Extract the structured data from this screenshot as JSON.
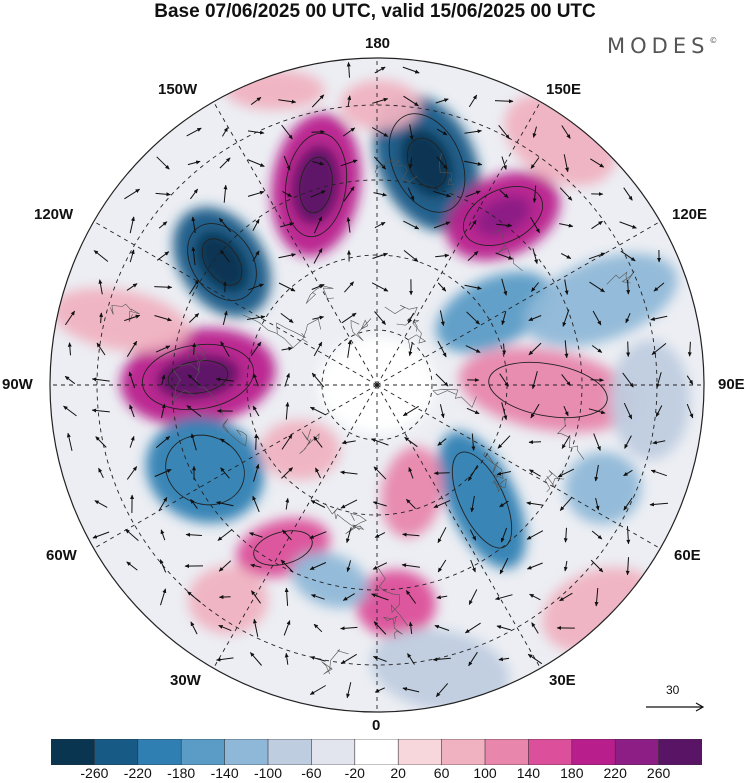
{
  "title": "Base 07/06/2025 00 UTC, valid 15/06/2025 00 UTC",
  "brand": {
    "name": "MODES",
    "mark": "©"
  },
  "longitude_labels": {
    "top": "180",
    "bottom": "0",
    "left": "90W",
    "right": "90E",
    "upper_left_1": "150W",
    "upper_left_2": "120W",
    "upper_right_1": "150E",
    "upper_right_2": "120E",
    "lower_left_1": "60W",
    "lower_left_2": "30W",
    "lower_right_1": "60E",
    "lower_right_2": "30E"
  },
  "reference_vector": {
    "value": "30"
  },
  "colorbar": {
    "ticks": [
      "-260",
      "-220",
      "-180",
      "-140",
      "-100",
      "-60",
      "-20",
      "20",
      "60",
      "100",
      "140",
      "180",
      "220",
      "260"
    ],
    "colors": [
      "#0a3550",
      "#175a86",
      "#2f7fb3",
      "#5b9cc6",
      "#8fb8d8",
      "#bfcde0",
      "#e2e4ee",
      "#ffffff",
      "#f7d7dc",
      "#f0b2c1",
      "#e886ac",
      "#dc4f9a",
      "#b81f8c",
      "#8c1e86",
      "#5a1466"
    ]
  },
  "map_layers": {
    "projection": "north-polar-stereographic",
    "field": "anomaly",
    "contours": true,
    "wind_vectors": true,
    "coastlines": true
  }
}
